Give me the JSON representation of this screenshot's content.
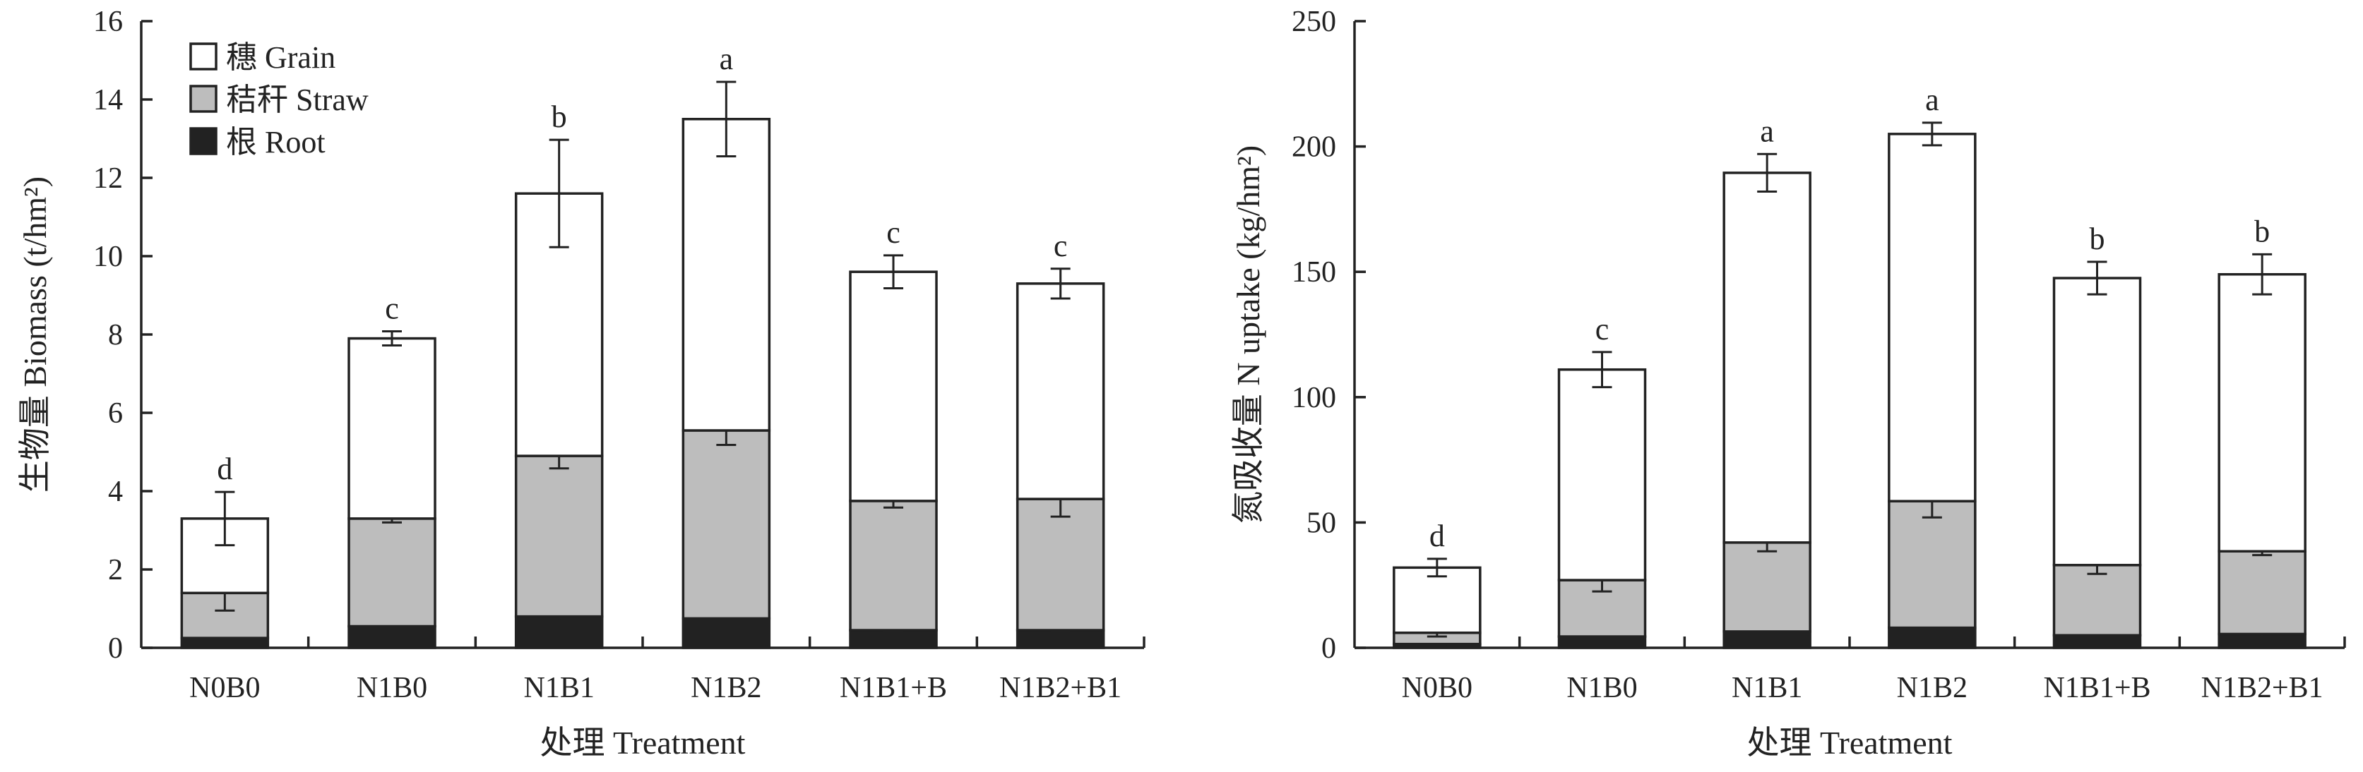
{
  "colors": {
    "grain": "#ffffff",
    "straw": "#bdbdbd",
    "root": "#222222"
  },
  "legend": [
    "穗 Grain",
    "秸秆 Straw",
    "根 Root"
  ],
  "chart_data": [
    {
      "type": "bar",
      "stacked": true,
      "categories": [
        "N0B0",
        "N1B0",
        "N1B1",
        "N1B2",
        "N1B1+B",
        "N1B2+B1"
      ],
      "xlabel": "处理 Treatment",
      "ylabel": "生物量 Biomass (t/hm²)",
      "ylim": [
        0,
        16
      ],
      "yticks": [
        0,
        2,
        4,
        6,
        8,
        10,
        12,
        14,
        16
      ],
      "series": [
        {
          "name": "根 Root",
          "values": [
            0.25,
            0.55,
            0.8,
            0.75,
            0.45,
            0.45
          ],
          "err": [
            0.05,
            0.08,
            0.1,
            0.15,
            0.05,
            0.03
          ]
        },
        {
          "name": "秸秆 Straw",
          "values": [
            1.15,
            2.75,
            4.1,
            4.8,
            3.3,
            3.35
          ],
          "err": [
            0.45,
            0.1,
            0.32,
            0.37,
            0.17,
            0.45
          ]
        },
        {
          "name": "穗 Grain",
          "values": [
            1.9,
            4.6,
            6.7,
            7.95,
            5.85,
            5.5
          ],
          "err": [
            0.68,
            0.18,
            1.37,
            0.95,
            0.42,
            0.38
          ]
        }
      ],
      "totals": [
        3.3,
        7.9,
        11.6,
        13.5,
        9.6,
        9.3
      ],
      "significance": [
        "d",
        "c",
        "b",
        "a",
        "c",
        "c"
      ]
    },
    {
      "type": "bar",
      "stacked": true,
      "categories": [
        "N0B0",
        "N1B0",
        "N1B1",
        "N1B2",
        "N1B1+B",
        "N1B2+B1"
      ],
      "xlabel": "处理 Treatment",
      "ylabel": "氮吸收量 N uptake (kg/hm²)",
      "ylim": [
        0,
        250
      ],
      "yticks": [
        0,
        50,
        100,
        150,
        200,
        250
      ],
      "series": [
        {
          "name": "根 Root",
          "values": [
            1.5,
            4.5,
            6.5,
            8,
            5,
            5.5
          ],
          "err": [
            0.5,
            1,
            2,
            2,
            1,
            1
          ]
        },
        {
          "name": "秸秆 Straw",
          "values": [
            4.5,
            22.5,
            35.5,
            50.5,
            28,
            33
          ],
          "err": [
            1.5,
            4.5,
            3.5,
            6.5,
            3.5,
            1.5
          ]
        },
        {
          "name": "穗 Grain",
          "values": [
            26,
            84,
            147.5,
            146.5,
            114.5,
            110.5
          ],
          "err": [
            3.5,
            7,
            7.5,
            4.5,
            6.5,
            8
          ]
        }
      ],
      "totals": [
        32,
        111,
        189.5,
        205,
        147.5,
        149
      ],
      "significance": [
        "d",
        "c",
        "a",
        "a",
        "b",
        "b"
      ]
    }
  ]
}
